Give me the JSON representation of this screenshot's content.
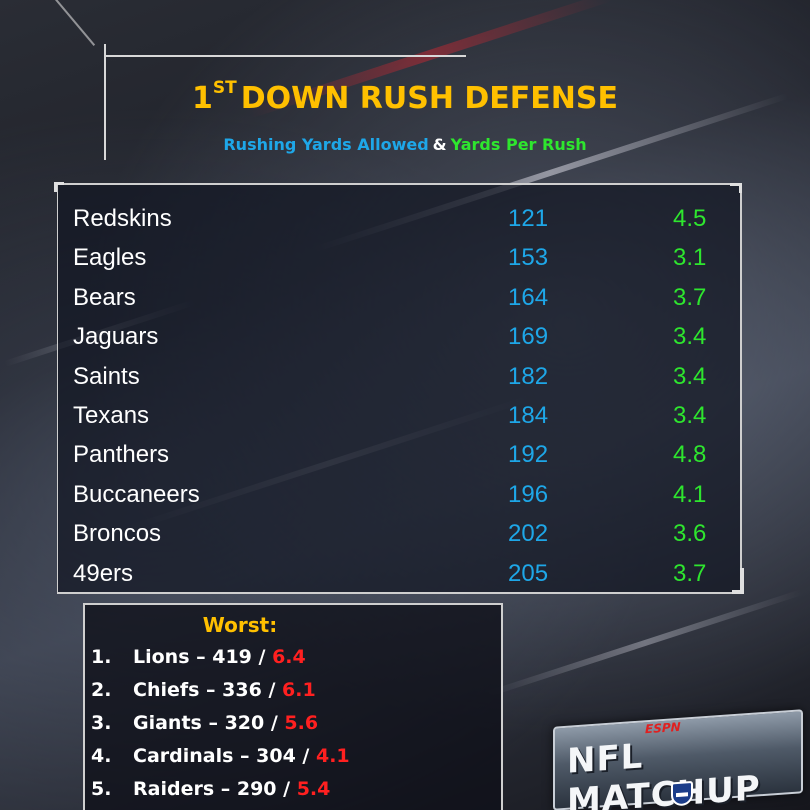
{
  "header": {
    "title_prefix": "1",
    "title_sup": "ST",
    "title_main": "DOWN RUSH DEFENSE",
    "subtitle_left": "Rushing Yards Allowed",
    "subtitle_amp": "&",
    "subtitle_right": "Yards Per Rush"
  },
  "teams": [
    {
      "team": "Redskins",
      "yards": "121",
      "ypr": "4.5"
    },
    {
      "team": "Eagles",
      "yards": "153",
      "ypr": "3.1"
    },
    {
      "team": "Bears",
      "yards": "164",
      "ypr": "3.7"
    },
    {
      "team": "Jaguars",
      "yards": "169",
      "ypr": "3.4"
    },
    {
      "team": "Saints",
      "yards": "182",
      "ypr": "3.4"
    },
    {
      "team": "Texans",
      "yards": "184",
      "ypr": "3.4"
    },
    {
      "team": "Panthers",
      "yards": "192",
      "ypr": "4.8"
    },
    {
      "team": "Buccaneers",
      "yards": "196",
      "ypr": "4.1"
    },
    {
      "team": "Broncos",
      "yards": "202",
      "ypr": "3.6"
    },
    {
      "team": "49ers",
      "yards": "205",
      "ypr": "3.7"
    }
  ],
  "worst": {
    "title": "Worst:",
    "items": [
      {
        "num": "1.",
        "text": "Lions – 419 / ",
        "ypr": "6.4"
      },
      {
        "num": "2.",
        "text": "Chiefs – 336 / ",
        "ypr": "6.1"
      },
      {
        "num": "3.",
        "text": "Giants – 320 / ",
        "ypr": "5.6"
      },
      {
        "num": "4.",
        "text": "Cardinals – 304 / ",
        "ypr": "4.1"
      },
      {
        "num": "5.",
        "text": "Raiders – 290 / ",
        "ypr": "5.4"
      }
    ]
  },
  "logo": {
    "network": "ESPN",
    "show": "NFL MATCHUP"
  },
  "colors": {
    "title": "#ffc000",
    "yards": "#1ea7e8",
    "ypr": "#2ee62e",
    "worst_ypr": "#ff2020"
  }
}
